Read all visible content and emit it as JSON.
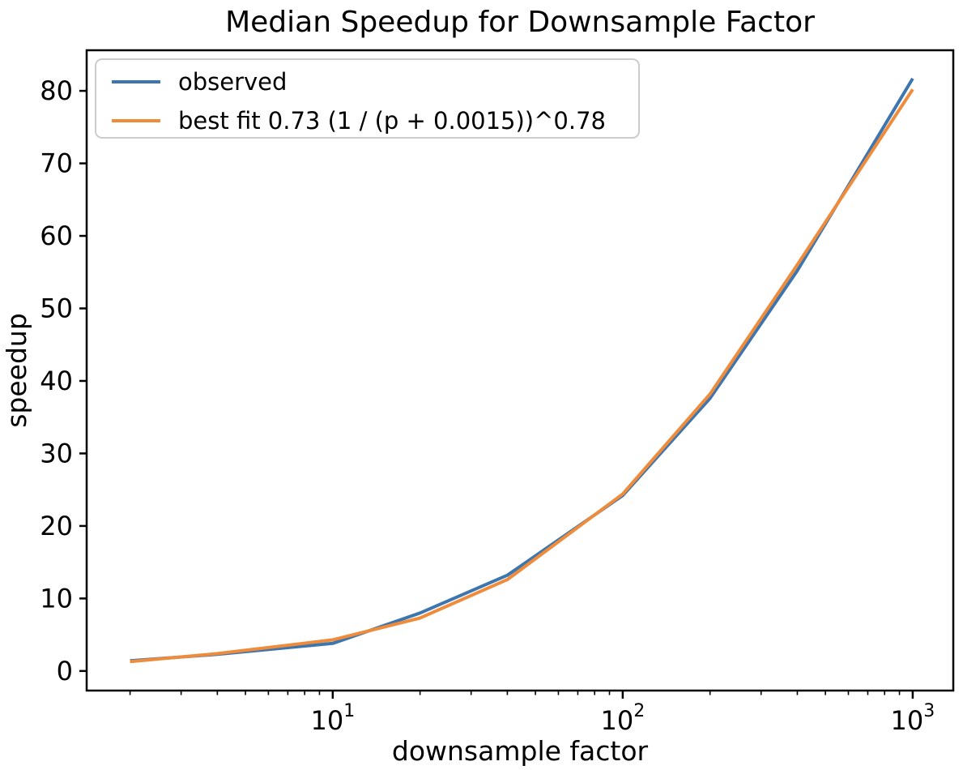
{
  "chart_data": {
    "type": "line",
    "title": "Median Speedup for Downsample Factor",
    "xlabel": "downsample factor",
    "ylabel": "speedup",
    "x_scale": "log",
    "grid": false,
    "legend_position": "upper left",
    "x": [
      2,
      4,
      10,
      20,
      40,
      100,
      200,
      400,
      1000
    ],
    "series": [
      {
        "name": "observed",
        "color": "#3d76af",
        "values": [
          1.4,
          2.3,
          3.8,
          8.0,
          13.2,
          24.2,
          37.6,
          55.2,
          81.7
        ]
      },
      {
        "name": "best fit 0.73 (1 / (p + 0.0015))^0.78",
        "color": "#ef8c3c",
        "values": [
          1.3,
          2.4,
          4.3,
          7.3,
          12.6,
          24.4,
          38.2,
          56.0,
          80.2
        ]
      }
    ],
    "xlim": [
      1.417,
      1380
    ],
    "ylim": [
      -2.7,
      85.6
    ],
    "yticks": [
      0,
      10,
      20,
      30,
      40,
      50,
      60,
      70,
      80
    ],
    "xticks": [
      {
        "value": 10,
        "label": "10^1",
        "base": "10",
        "exp": "1"
      },
      {
        "value": 100,
        "label": "10^2",
        "base": "10",
        "exp": "2"
      },
      {
        "value": 1000,
        "label": "10^3",
        "base": "10",
        "exp": "3"
      }
    ]
  },
  "colors": {
    "background": "#ffffff",
    "axes": "#000000",
    "legend_border": "#cccccc"
  }
}
